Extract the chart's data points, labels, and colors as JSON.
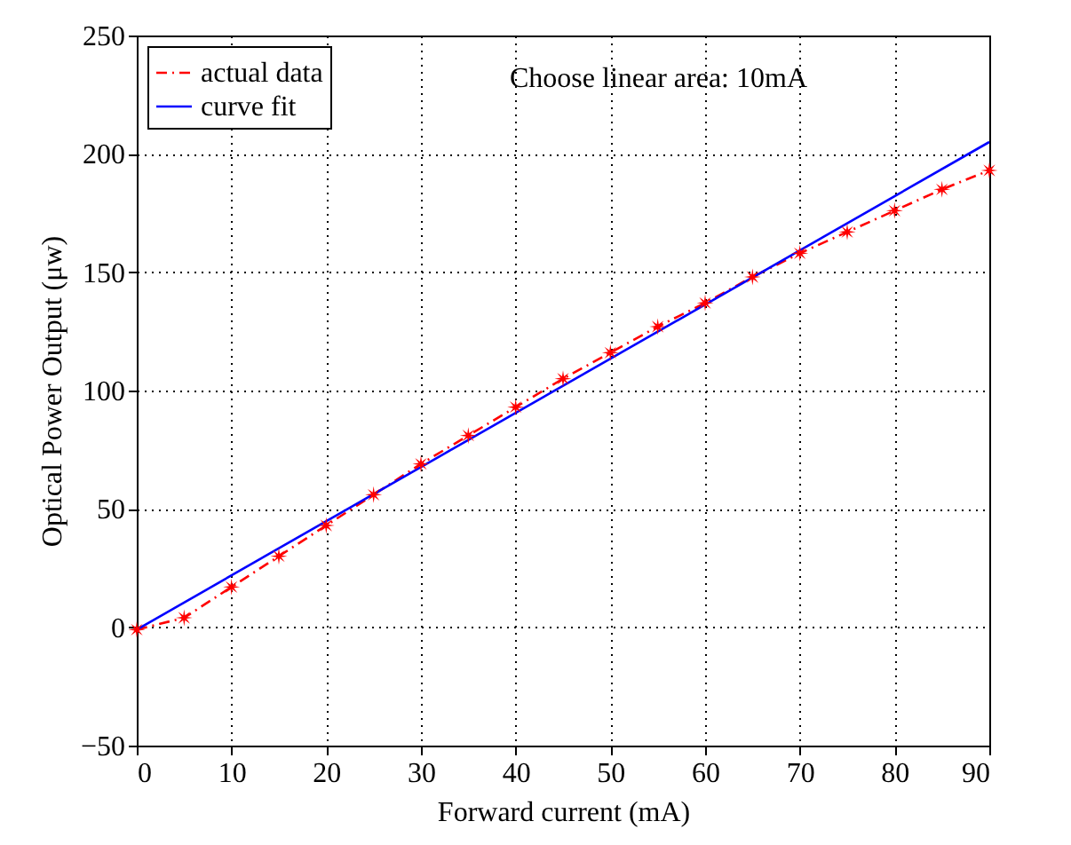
{
  "chart_data": {
    "type": "line",
    "xlabel": "Forward current (mA)",
    "ylabel": "Optical Power Output (μw)",
    "annotations": [
      "Choose linear area: 10mA"
    ],
    "series": [
      {
        "name": "actual data",
        "color": "#ff0000",
        "marker": "star",
        "line_style": "dashed",
        "x": [
          0,
          5,
          10,
          15,
          20,
          25,
          30,
          35,
          40,
          45,
          50,
          55,
          60,
          65,
          70,
          75,
          80,
          85,
          90
        ],
        "values": [
          -1,
          4,
          17,
          30,
          43,
          56,
          69,
          81,
          93,
          105,
          116,
          127,
          137,
          148,
          158,
          167,
          176,
          185,
          193
        ]
      },
      {
        "name": "curve fit",
        "color": "#0000ff",
        "line_style": "solid",
        "x": [
          0,
          90
        ],
        "values": [
          -1,
          205
        ]
      }
    ],
    "xlim": [
      0,
      90
    ],
    "xticks": [
      0,
      10,
      20,
      30,
      40,
      50,
      60,
      70,
      80,
      90
    ],
    "ylim": [
      -50,
      250
    ],
    "yticks": [
      -50,
      0,
      50,
      100,
      150,
      200,
      250
    ],
    "grid": true,
    "legend": "top left"
  }
}
